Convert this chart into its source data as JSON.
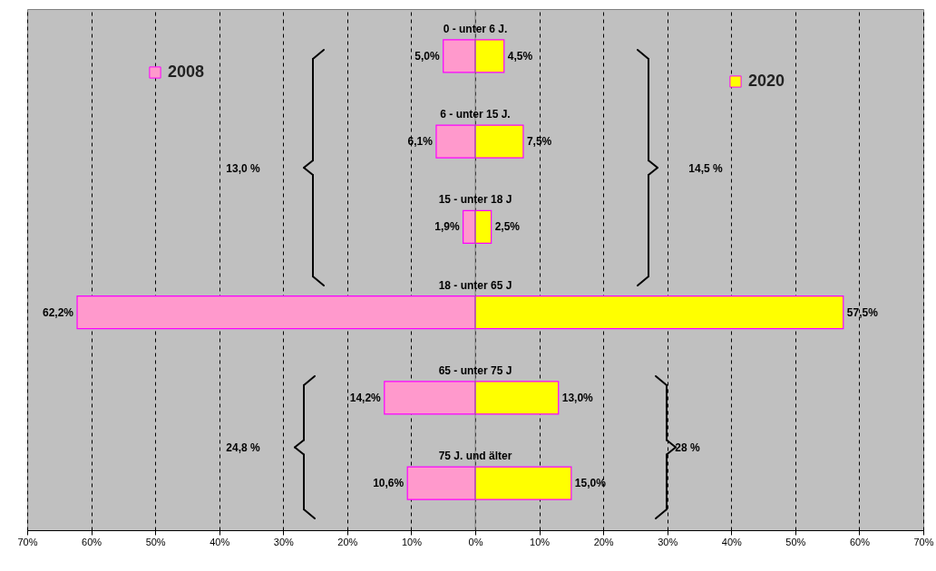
{
  "chart_data": {
    "type": "bar",
    "orientation": "horizontal",
    "categories": [
      "0 - unter 6 J.",
      "6 - unter 15 J.",
      "15 - unter 18 J",
      "18 - unter 65 J",
      "65 - unter 75 J",
      "75 J. und älter"
    ],
    "series": [
      {
        "name": "2008",
        "color": "#ff99cc",
        "base": [
          -5.0,
          -6.1,
          -1.9,
          -62.2,
          -14.2,
          -10.6
        ],
        "values": [
          5.0,
          6.1,
          1.9,
          62.2,
          14.2,
          10.6
        ],
        "value_labels": [
          "5,0%",
          "6,1%",
          "1,9%",
          "62,2%",
          "14,2%",
          "10,6%"
        ]
      },
      {
        "name": "2020",
        "color": "#ffff00",
        "values": [
          4.5,
          7.5,
          2.5,
          57.5,
          13.0,
          15.0
        ],
        "value_labels": [
          "4,5%",
          "7,5%",
          "2,5%",
          "57,5%",
          "13,0%",
          "15,0%"
        ]
      }
    ],
    "xlim": [
      -70,
      70
    ],
    "xticks": [
      {
        "value": -70,
        "label": "70%"
      },
      {
        "value": -60,
        "label": "60%"
      },
      {
        "value": -50,
        "label": "50%"
      },
      {
        "value": -40,
        "label": "40%"
      },
      {
        "value": -30,
        "label": "30%"
      },
      {
        "value": -20,
        "label": "20%"
      },
      {
        "value": -10,
        "label": "10%"
      },
      {
        "value": 0,
        "label": "0%"
      },
      {
        "value": 10,
        "label": "10%"
      },
      {
        "value": 20,
        "label": "20%"
      },
      {
        "value": 30,
        "label": "30%"
      },
      {
        "value": 40,
        "label": "40%"
      },
      {
        "value": 50,
        "label": "50%"
      },
      {
        "value": 60,
        "label": "60%"
      },
      {
        "value": 70,
        "label": "70%"
      }
    ],
    "annotations": [
      "13,0 %",
      "14,5 %",
      "24,8 %",
      "28 %"
    ],
    "grid": "x",
    "legend": "top"
  }
}
